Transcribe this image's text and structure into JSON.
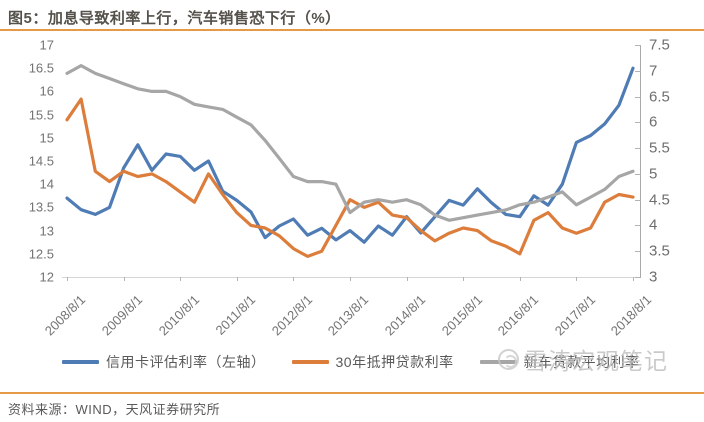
{
  "header": {
    "title": "图5：加息导致利率上行，汽车销售恐下行（%）"
  },
  "watermark": {
    "text": "雪涛宏观笔记"
  },
  "source": {
    "label": "资料来源：WIND，天风证券研究所"
  },
  "colors": {
    "accent_rule": "#E69A45",
    "series_blue": "#4F7CB4",
    "series_orange": "#DD7D3C",
    "series_gray": "#A6A6A6",
    "axis_line": "#A9A9A9",
    "baseline": "#D6D6D6",
    "tick_label": "#737373",
    "legend_text": "#595959",
    "watermark_gray": "#BDBDBD"
  },
  "chart_data": {
    "type": "line",
    "title": "加息导致利率上行，汽车销售恐下行（%）",
    "x_tick_labels": [
      "2008/8/1",
      "2009/8/1",
      "2010/8/1",
      "2011/8/1",
      "2012/8/1",
      "2013/8/1",
      "2014/8/1",
      "2015/8/1",
      "2016/8/1",
      "2017/8/1",
      "2018/8/1"
    ],
    "x_frequency": "quarterly, 2008Q3 to 2018Q3, 41 points per series",
    "left_axis": {
      "min": 12,
      "max": 17,
      "tick_step": 0.5,
      "ticks": [
        17,
        16.5,
        16,
        15.5,
        15,
        14.5,
        14,
        13.5,
        13,
        12.5,
        12
      ]
    },
    "right_axis": {
      "min": 3,
      "max": 7.5,
      "tick_step": 0.5,
      "ticks": [
        7.5,
        7,
        6.5,
        6,
        5.5,
        5,
        4.5,
        4,
        3.5,
        3
      ]
    },
    "grid": false,
    "legend_position": "bottom",
    "series": [
      {
        "name": "信用卡评估利率（左轴）",
        "axis": "left",
        "color": "#4F7CB4",
        "values": [
          13.7,
          13.45,
          13.35,
          13.5,
          14.35,
          14.85,
          14.3,
          14.65,
          14.6,
          14.3,
          14.5,
          13.85,
          13.65,
          13.4,
          12.85,
          13.1,
          13.25,
          12.9,
          13.05,
          12.8,
          13.0,
          12.75,
          13.1,
          12.9,
          13.3,
          12.95,
          13.3,
          13.65,
          13.55,
          13.9,
          13.6,
          13.35,
          13.3,
          13.75,
          13.55,
          14.0,
          14.9,
          15.05,
          15.3,
          15.7,
          16.5
        ]
      },
      {
        "name": "30年抵押贷款利率",
        "axis": "right",
        "color": "#DD7D3C",
        "values": [
          6.05,
          6.45,
          5.05,
          4.85,
          5.05,
          4.95,
          5.0,
          4.85,
          4.65,
          4.45,
          5.0,
          4.6,
          4.25,
          4.0,
          3.95,
          3.8,
          3.55,
          3.4,
          3.5,
          4.0,
          4.5,
          4.35,
          4.45,
          4.2,
          4.15,
          3.9,
          3.7,
          3.85,
          3.95,
          3.9,
          3.7,
          3.6,
          3.45,
          4.1,
          4.25,
          3.95,
          3.85,
          3.95,
          4.45,
          4.6,
          4.55
        ]
      },
      {
        "name": "新车贷款平均利率",
        "axis": "right",
        "color": "#A6A6A6",
        "values": [
          6.95,
          7.1,
          6.95,
          6.85,
          6.75,
          6.65,
          6.6,
          6.6,
          6.5,
          6.35,
          6.3,
          6.25,
          6.1,
          5.95,
          5.65,
          5.3,
          4.95,
          4.85,
          4.85,
          4.8,
          4.25,
          4.45,
          4.5,
          4.45,
          4.5,
          4.4,
          4.2,
          4.1,
          4.15,
          4.2,
          4.25,
          4.3,
          4.4,
          4.45,
          4.55,
          4.65,
          4.4,
          4.55,
          4.7,
          4.95,
          5.05
        ]
      }
    ]
  }
}
